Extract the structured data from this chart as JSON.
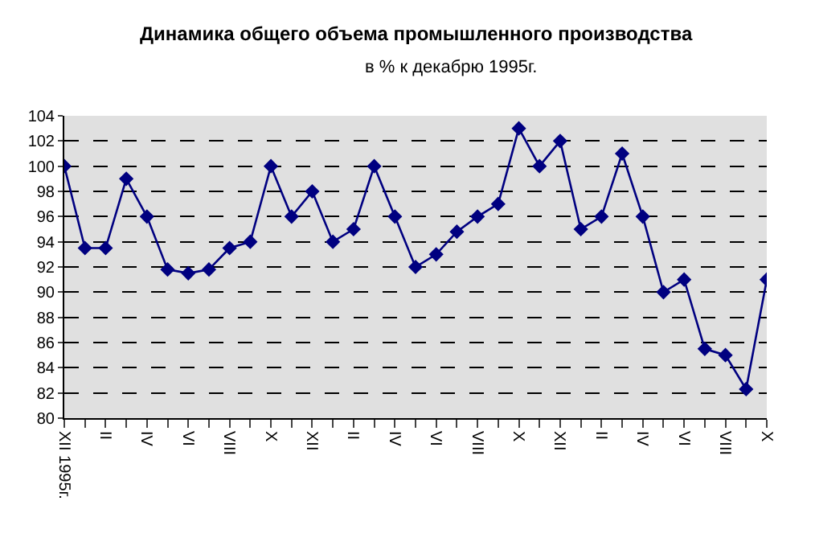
{
  "chart_data": {
    "type": "line",
    "title": "Динамика общего объема промышленного производства",
    "subtitle": "в % к декабрю 1995г.",
    "categories": [
      "XII 1995г.",
      null,
      "II",
      null,
      "IV",
      null,
      "VI",
      null,
      "VIII",
      null,
      "X",
      null,
      "XII",
      null,
      "II",
      null,
      "IV",
      null,
      "VI",
      null,
      "VIII",
      null,
      "X",
      null,
      "XII",
      null,
      "II",
      null,
      "IV",
      null,
      "VI",
      null,
      "VIII",
      null,
      "X"
    ],
    "series": [
      {
        "color": "#000080",
        "values": [
          100,
          93.5,
          93.5,
          99,
          96,
          91.8,
          91.5,
          91.8,
          93.5,
          94,
          100,
          96,
          98,
          94,
          95,
          100,
          96,
          92,
          93,
          94.8,
          96,
          97,
          103,
          100,
          102,
          95,
          96,
          101,
          96,
          90,
          91,
          85.5,
          85,
          82.3,
          91
        ]
      }
    ],
    "ylim": [
      80,
      104
    ],
    "yticks": [
      80,
      82,
      84,
      86,
      88,
      90,
      92,
      94,
      96,
      98,
      100,
      102,
      104
    ],
    "grid": "y",
    "marker": "diamond",
    "line_style": "solid"
  }
}
